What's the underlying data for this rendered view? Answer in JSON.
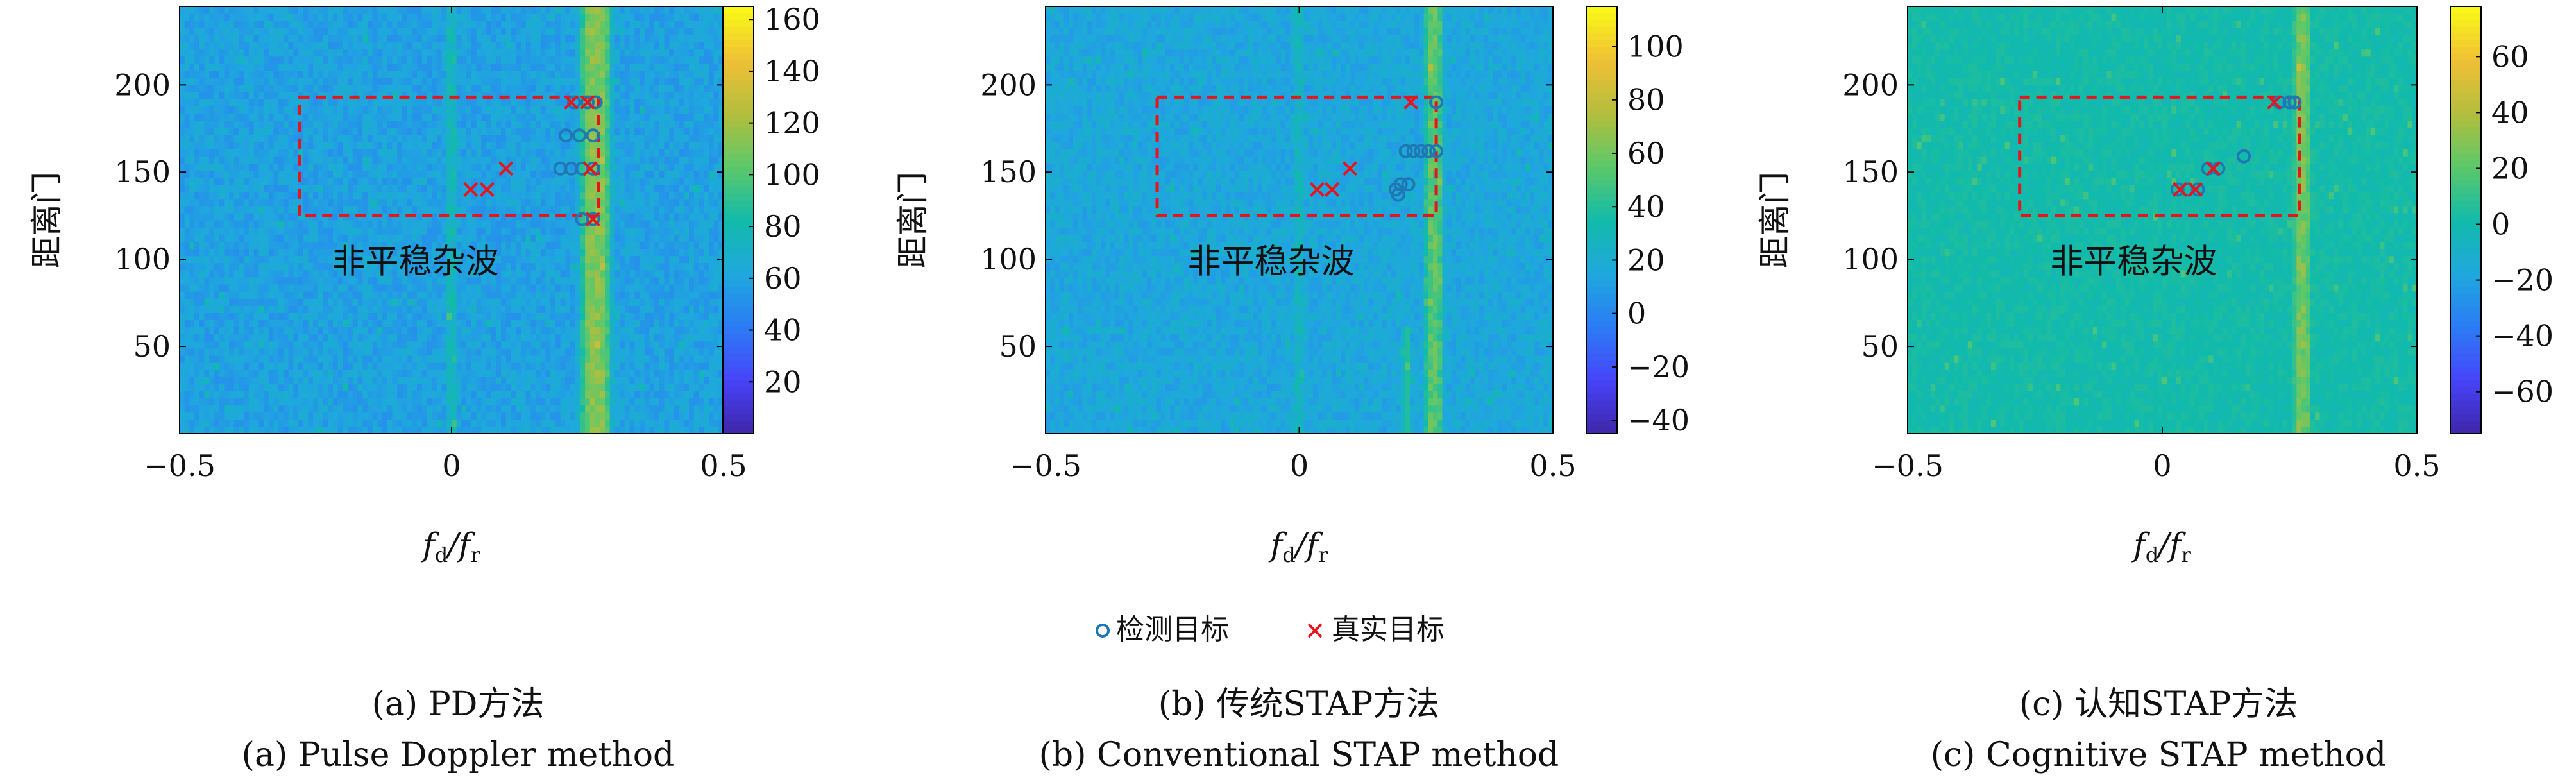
{
  "colormap": [
    "#3e26a8",
    "#4743f8",
    "#2b7bf5",
    "#1fa8de",
    "#11bbaa",
    "#5cc86a",
    "#b3be3d",
    "#f0c036",
    "#f9fb15"
  ],
  "detect_color": "#1f77b4",
  "truth_color": "#e8141c",
  "region_color": "#e8141c",
  "legend": {
    "detected": "检测目标",
    "true": "真实目标"
  },
  "chart_data": [
    {
      "type": "heatmap",
      "xlabel_main": "f",
      "xlabel_sub1": "d",
      "xlabel_mid": "/f",
      "xlabel_sub2": "r",
      "ylabel": "距离门",
      "xlim": [
        -0.5,
        0.5
      ],
      "ylim": [
        0,
        245
      ],
      "xticks": [
        -0.5,
        0,
        0.5
      ],
      "xtick_labels": [
        "−0.5",
        "0",
        "0.5"
      ],
      "yticks": [
        50,
        100,
        150,
        200
      ],
      "ytick_labels": [
        "50",
        "100",
        "150",
        "200"
      ],
      "clim": [
        0,
        165
      ],
      "colorbar_ticks": [
        20,
        40,
        60,
        80,
        100,
        120,
        140,
        160
      ],
      "colorbar_labels": [
        "20",
        "40",
        "60",
        "80",
        "100",
        "120",
        "140",
        "160"
      ],
      "background_level": 0.36,
      "noise": 0.1,
      "clutter_level": 0.5,
      "clutter_width": 0.008,
      "band_center": 0.265,
      "band_width": 0.055,
      "band_level": 0.68,
      "extra_band": null,
      "region": {
        "x": [
          -0.28,
          0.27
        ],
        "y": [
          125,
          193
        ]
      },
      "region_label": "非平稳杂波",
      "region_label_pos": [
        -0.22,
        98
      ],
      "true_targets": [
        [
          0.22,
          190
        ],
        [
          0.1,
          152
        ],
        [
          0.035,
          140
        ],
        [
          0.065,
          140
        ],
        [
          0.25,
          190
        ],
        [
          0.255,
          152
        ],
        [
          0.26,
          123
        ]
      ],
      "detected_targets": [
        [
          0.225,
          190
        ],
        [
          0.25,
          190
        ],
        [
          0.265,
          190
        ],
        [
          0.21,
          171
        ],
        [
          0.235,
          171
        ],
        [
          0.26,
          171
        ],
        [
          0.2,
          152
        ],
        [
          0.22,
          152
        ],
        [
          0.24,
          152
        ],
        [
          0.26,
          152
        ],
        [
          0.24,
          123
        ],
        [
          0.26,
          123
        ]
      ],
      "caption_cn": "(a) PD方法",
      "caption_en": "(a) Pulse Doppler method"
    },
    {
      "type": "heatmap",
      "xlabel_main": "f",
      "xlabel_sub1": "d",
      "xlabel_mid": "/f",
      "xlabel_sub2": "r",
      "ylabel": "距离门",
      "xlim": [
        -0.5,
        0.5
      ],
      "ylim": [
        0,
        245
      ],
      "xticks": [
        -0.5,
        0,
        0.5
      ],
      "xtick_labels": [
        "−0.5",
        "0",
        "0.5"
      ],
      "yticks": [
        50,
        100,
        150,
        200
      ],
      "ytick_labels": [
        "50",
        "100",
        "150",
        "200"
      ],
      "clim": [
        -45,
        115
      ],
      "colorbar_ticks": [
        -40,
        -20,
        0,
        20,
        40,
        60,
        80,
        100
      ],
      "colorbar_labels": [
        "−40",
        "−20",
        "0",
        "20",
        "40",
        "60",
        "80",
        "100"
      ],
      "background_level": 0.38,
      "noise": 0.09,
      "clutter_level": 0.48,
      "clutter_width": 0.007,
      "band_center": 0.265,
      "band_width": 0.035,
      "band_level": 0.62,
      "extra_band": {
        "center": 0.21,
        "width": 0.01,
        "level": 0.6,
        "ymax": 62
      },
      "region": {
        "x": [
          -0.28,
          0.27
        ],
        "y": [
          125,
          193
        ]
      },
      "region_label": "非平稳杂波",
      "region_label_pos": [
        -0.22,
        98
      ],
      "true_targets": [
        [
          0.22,
          190
        ],
        [
          0.1,
          152
        ],
        [
          0.035,
          140
        ],
        [
          0.065,
          140
        ]
      ],
      "detected_targets": [
        [
          0.27,
          190
        ],
        [
          0.21,
          162
        ],
        [
          0.225,
          162
        ],
        [
          0.24,
          162
        ],
        [
          0.255,
          162
        ],
        [
          0.27,
          162
        ],
        [
          0.19,
          140
        ],
        [
          0.2,
          143
        ],
        [
          0.215,
          143
        ],
        [
          0.195,
          137
        ]
      ],
      "caption_cn": "(b) 传统STAP方法",
      "caption_en": "(b) Conventional STAP method"
    },
    {
      "type": "heatmap",
      "xlabel_main": "f",
      "xlabel_sub1": "d",
      "xlabel_mid": "/f",
      "xlabel_sub2": "r",
      "ylabel": "距离门",
      "xlim": [
        -0.5,
        0.5
      ],
      "ylim": [
        0,
        245
      ],
      "xticks": [
        -0.5,
        0,
        0.5
      ],
      "xtick_labels": [
        "−0.5",
        "0",
        "0.5"
      ],
      "yticks": [
        50,
        100,
        150,
        200
      ],
      "ytick_labels": [
        "50",
        "100",
        "150",
        "200"
      ],
      "clim": [
        -75,
        78
      ],
      "colorbar_ticks": [
        -60,
        -40,
        -20,
        0,
        20,
        40,
        60
      ],
      "colorbar_labels": [
        "−60",
        "−40",
        "−20",
        "0",
        "20",
        "40",
        "60"
      ],
      "background_level": 0.5,
      "noise": 0.05,
      "clutter_level": 0.5,
      "clutter_width": 0.0,
      "band_center": 0.275,
      "band_width": 0.03,
      "band_level": 0.66,
      "extra_band": null,
      "region": {
        "x": [
          -0.28,
          0.27
        ],
        "y": [
          125,
          193
        ]
      },
      "region_label": "非平稳杂波",
      "region_label_pos": [
        -0.22,
        98
      ],
      "true_targets": [
        [
          0.22,
          190
        ],
        [
          0.1,
          152
        ],
        [
          0.035,
          140
        ],
        [
          0.065,
          140
        ]
      ],
      "detected_targets": [
        [
          0.23,
          190
        ],
        [
          0.25,
          190
        ],
        [
          0.26,
          190
        ],
        [
          0.16,
          159
        ],
        [
          0.09,
          152
        ],
        [
          0.11,
          152
        ],
        [
          0.03,
          140
        ],
        [
          0.05,
          140
        ],
        [
          0.07,
          140
        ]
      ],
      "caption_cn": "(c) 认知STAP方法",
      "caption_en": "(c) Cognitive STAP method"
    }
  ]
}
